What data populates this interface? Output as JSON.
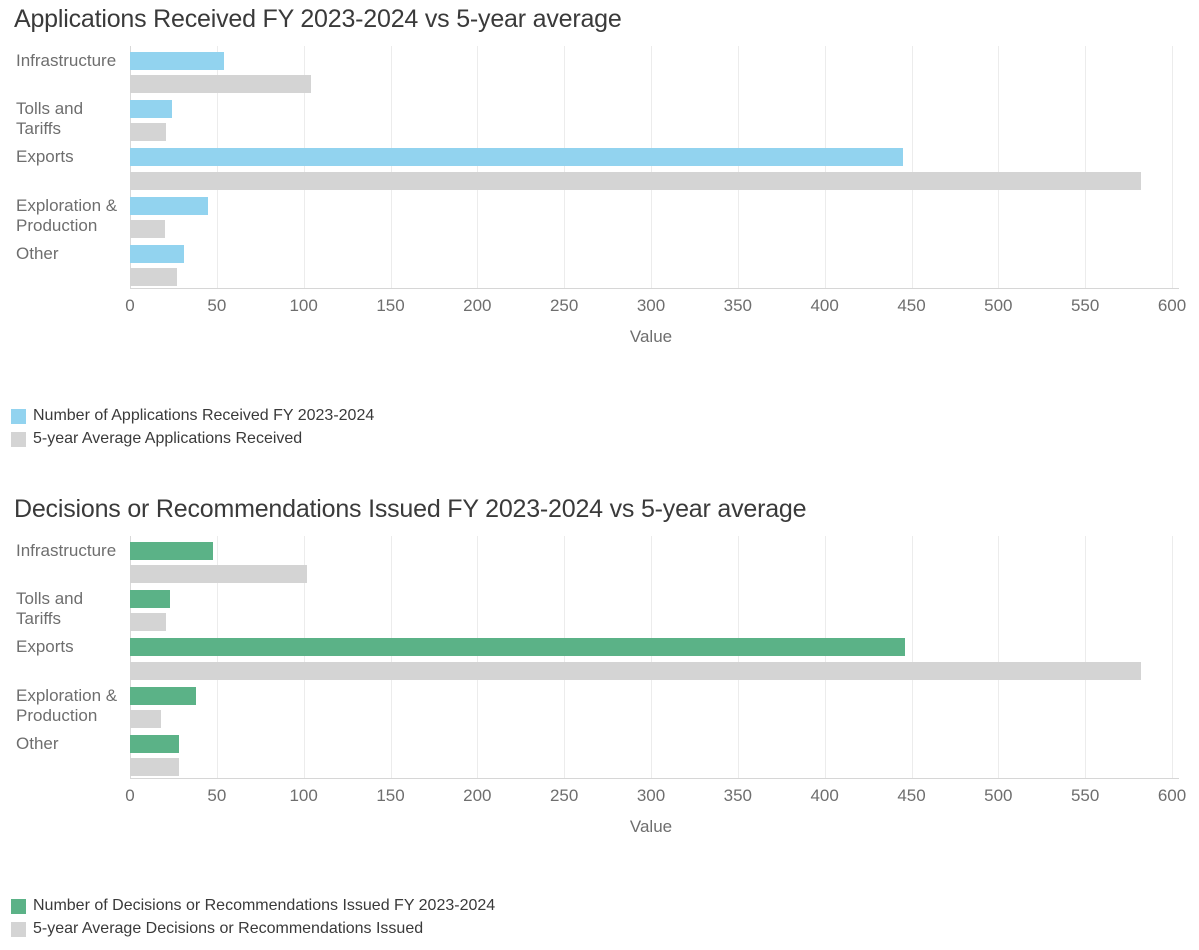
{
  "style": {
    "accent_blue": "#92d3ef",
    "accent_green": "#5bb287",
    "average_gray": "#d4d4d4",
    "gridline_color": "#ececec",
    "axis_color": "#d6d6d6",
    "title_color": "#3a3a3a",
    "label_color": "#6e6e6e"
  },
  "chart_data": [
    {
      "type": "bar",
      "orientation": "horizontal",
      "title": "Applications Received FY 2023-2024 vs 5-year average",
      "xlabel": "Value",
      "xlim": [
        0,
        600
      ],
      "xticks": [
        0,
        50,
        100,
        150,
        200,
        250,
        300,
        350,
        400,
        450,
        500,
        550,
        600
      ],
      "grid": true,
      "legend_position": "bottom-left",
      "categories": [
        "Infrastructure",
        "Tolls and Tariffs",
        "Exports",
        "Exploration & Production",
        "Other"
      ],
      "category_lines": [
        [
          "Infrastructure"
        ],
        [
          "Tolls and",
          "Tariffs"
        ],
        [
          "Exports"
        ],
        [
          "Exploration &",
          "Production"
        ],
        [
          "Other"
        ]
      ],
      "series": [
        {
          "name": "Number of Applications Received FY 2023-2024",
          "color": "#92d3ef",
          "values": [
            54,
            24,
            445,
            45,
            31
          ]
        },
        {
          "name": "5-year Average Applications Received",
          "color": "#d4d4d4",
          "values": [
            104,
            21,
            582,
            20,
            27
          ]
        }
      ]
    },
    {
      "type": "bar",
      "orientation": "horizontal",
      "title": "Decisions or Recommendations Issued FY 2023-2024 vs 5-year average",
      "xlabel": "Value",
      "xlim": [
        0,
        600
      ],
      "xticks": [
        0,
        50,
        100,
        150,
        200,
        250,
        300,
        350,
        400,
        450,
        500,
        550,
        600
      ],
      "grid": true,
      "legend_position": "bottom-left",
      "categories": [
        "Infrastructure",
        "Tolls and Tariffs",
        "Exports",
        "Exploration & Production",
        "Other"
      ],
      "category_lines": [
        [
          "Infrastructure"
        ],
        [
          "Tolls and",
          "Tariffs"
        ],
        [
          "Exports"
        ],
        [
          "Exploration &",
          "Production"
        ],
        [
          "Other"
        ]
      ],
      "series": [
        {
          "name": "Number of Decisions or Recommendations Issued FY 2023-2024",
          "color": "#5bb287",
          "values": [
            48,
            23,
            446,
            38,
            28
          ]
        },
        {
          "name": "5-year Average Decisions or Recommendations Issued",
          "color": "#d4d4d4",
          "values": [
            102,
            21,
            582,
            18,
            28
          ]
        }
      ]
    }
  ]
}
